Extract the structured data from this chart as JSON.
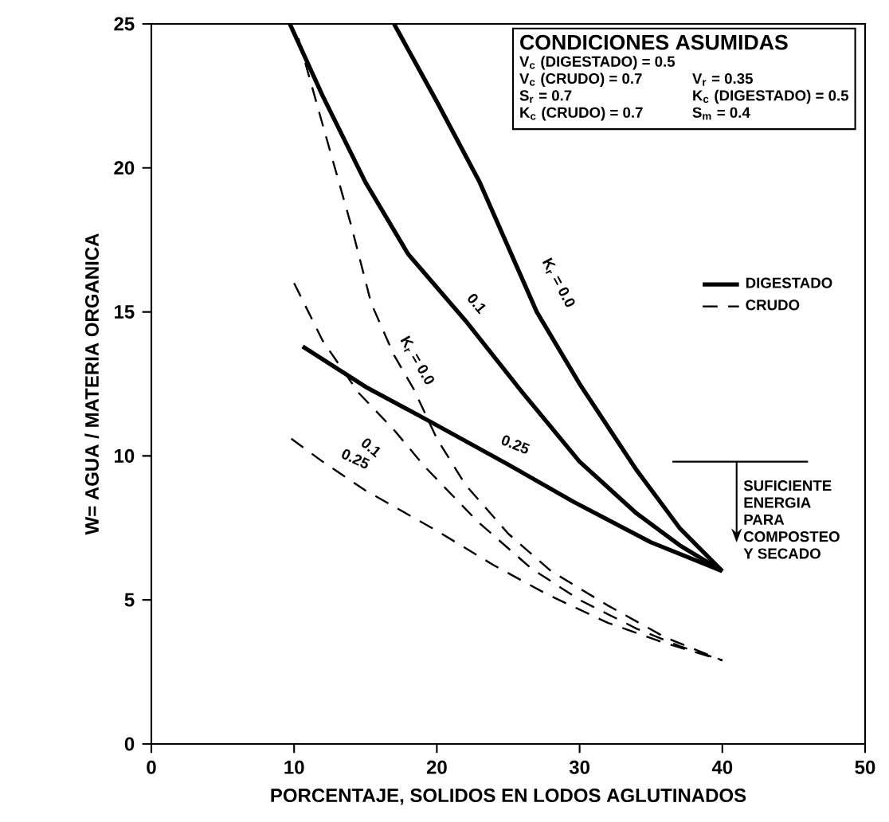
{
  "chart_data": {
    "type": "line",
    "xlabel": "PORCENTAJE, SOLIDOS EN LODOS AGLUTINADOS",
    "ylabel": "W= AGUA / MATERIA ORGANICA",
    "xlim": [
      0,
      50
    ],
    "ylim": [
      0,
      25
    ],
    "xticks": [
      0,
      10,
      20,
      30,
      40,
      50
    ],
    "yticks": [
      0,
      5,
      10,
      15,
      20,
      25
    ],
    "grid": false,
    "legend": "top right",
    "series": [
      {
        "name": "DIGESTADO",
        "color": "#000000",
        "line_style": "solid",
        "x": [
          17,
          20,
          23,
          27,
          30,
          34,
          37,
          40
        ],
        "values": [
          25,
          22.3,
          19.5,
          15,
          12.5,
          9.5,
          7.5,
          6
        ]
      },
      {
        "color": "#000000",
        "line_style": "solid",
        "x": [
          9.7,
          12,
          15,
          18,
          22,
          26,
          30,
          34,
          37,
          40
        ],
        "values": [
          25,
          22.5,
          19.5,
          17,
          14.7,
          12.2,
          9.8,
          8,
          6.9,
          6
        ]
      },
      {
        "color": "#000000",
        "line_style": "solid",
        "x": [
          10.6,
          15,
          19.5,
          25,
          29.6,
          35,
          40
        ],
        "values": [
          13.8,
          12.4,
          11.2,
          9.7,
          8.4,
          7,
          6
        ]
      },
      {
        "name": "CRUDO",
        "color": "#000000",
        "line_style": "dashed",
        "x": [
          10.3,
          12,
          14,
          15.4,
          17,
          18.4,
          20,
          22,
          25,
          28,
          32,
          36,
          40
        ],
        "values": [
          24.5,
          21.5,
          18,
          15.3,
          13.5,
          12.3,
          10.6,
          9,
          7.3,
          6,
          4.8,
          3.7,
          2.9
        ]
      },
      {
        "color": "#000000",
        "line_style": "dashed",
        "x": [
          10,
          12,
          14.5,
          17,
          19.2,
          22.9,
          26.6,
          30,
          34,
          37,
          40
        ],
        "values": [
          16,
          14,
          12.2,
          10.9,
          9.6,
          7.7,
          6.1,
          5,
          4,
          3.4,
          2.9
        ]
      },
      {
        "color": "#000000",
        "line_style": "dashed",
        "x": [
          9.8,
          12,
          15,
          20,
          24,
          27.7,
          32,
          36,
          40
        ],
        "values": [
          10.6,
          9.8,
          8.8,
          7.4,
          6.2,
          5.2,
          4.2,
          3.5,
          2.9
        ]
      }
    ],
    "annotations": [
      "CONDICIONES ASUMIDAS",
      "V$_{c}$ (DIGESTADO) = 0.5",
      "V$_{c}$ (CRUDO) = 0.7",
      "V$_{r}$ = 0.35",
      "S$_{r}$ = 0.7",
      "K$_{c}$ (DIGESTADO) = 0.5",
      "K$_{c}$ (CRUDO) = 0.7",
      "S$_{m}$ = 0.4",
      {
        "text": "K$_{r}$ = 0.0",
        "x": 28.5,
        "y": 16
      },
      {
        "text": "0.1",
        "x": 22.8,
        "y": 15.3
      },
      {
        "text": "K$_{r}$ = 0.0",
        "x": 18.6,
        "y": 13.3
      },
      {
        "text": "0.1",
        "x": 15.4,
        "y": 10.3
      },
      {
        "text": "0.25",
        "x": 25.5,
        "y": 10.4
      },
      {
        "text": "0.25",
        "x": 14.3,
        "y": 9.9
      }
    ],
    "ref_lines": [
      {
        "axis": "y",
        "value": 9.8,
        "label": "SUFICIENTE ENERGIA PARA COMPOSTEO Y SECADO"
      }
    ]
  }
}
